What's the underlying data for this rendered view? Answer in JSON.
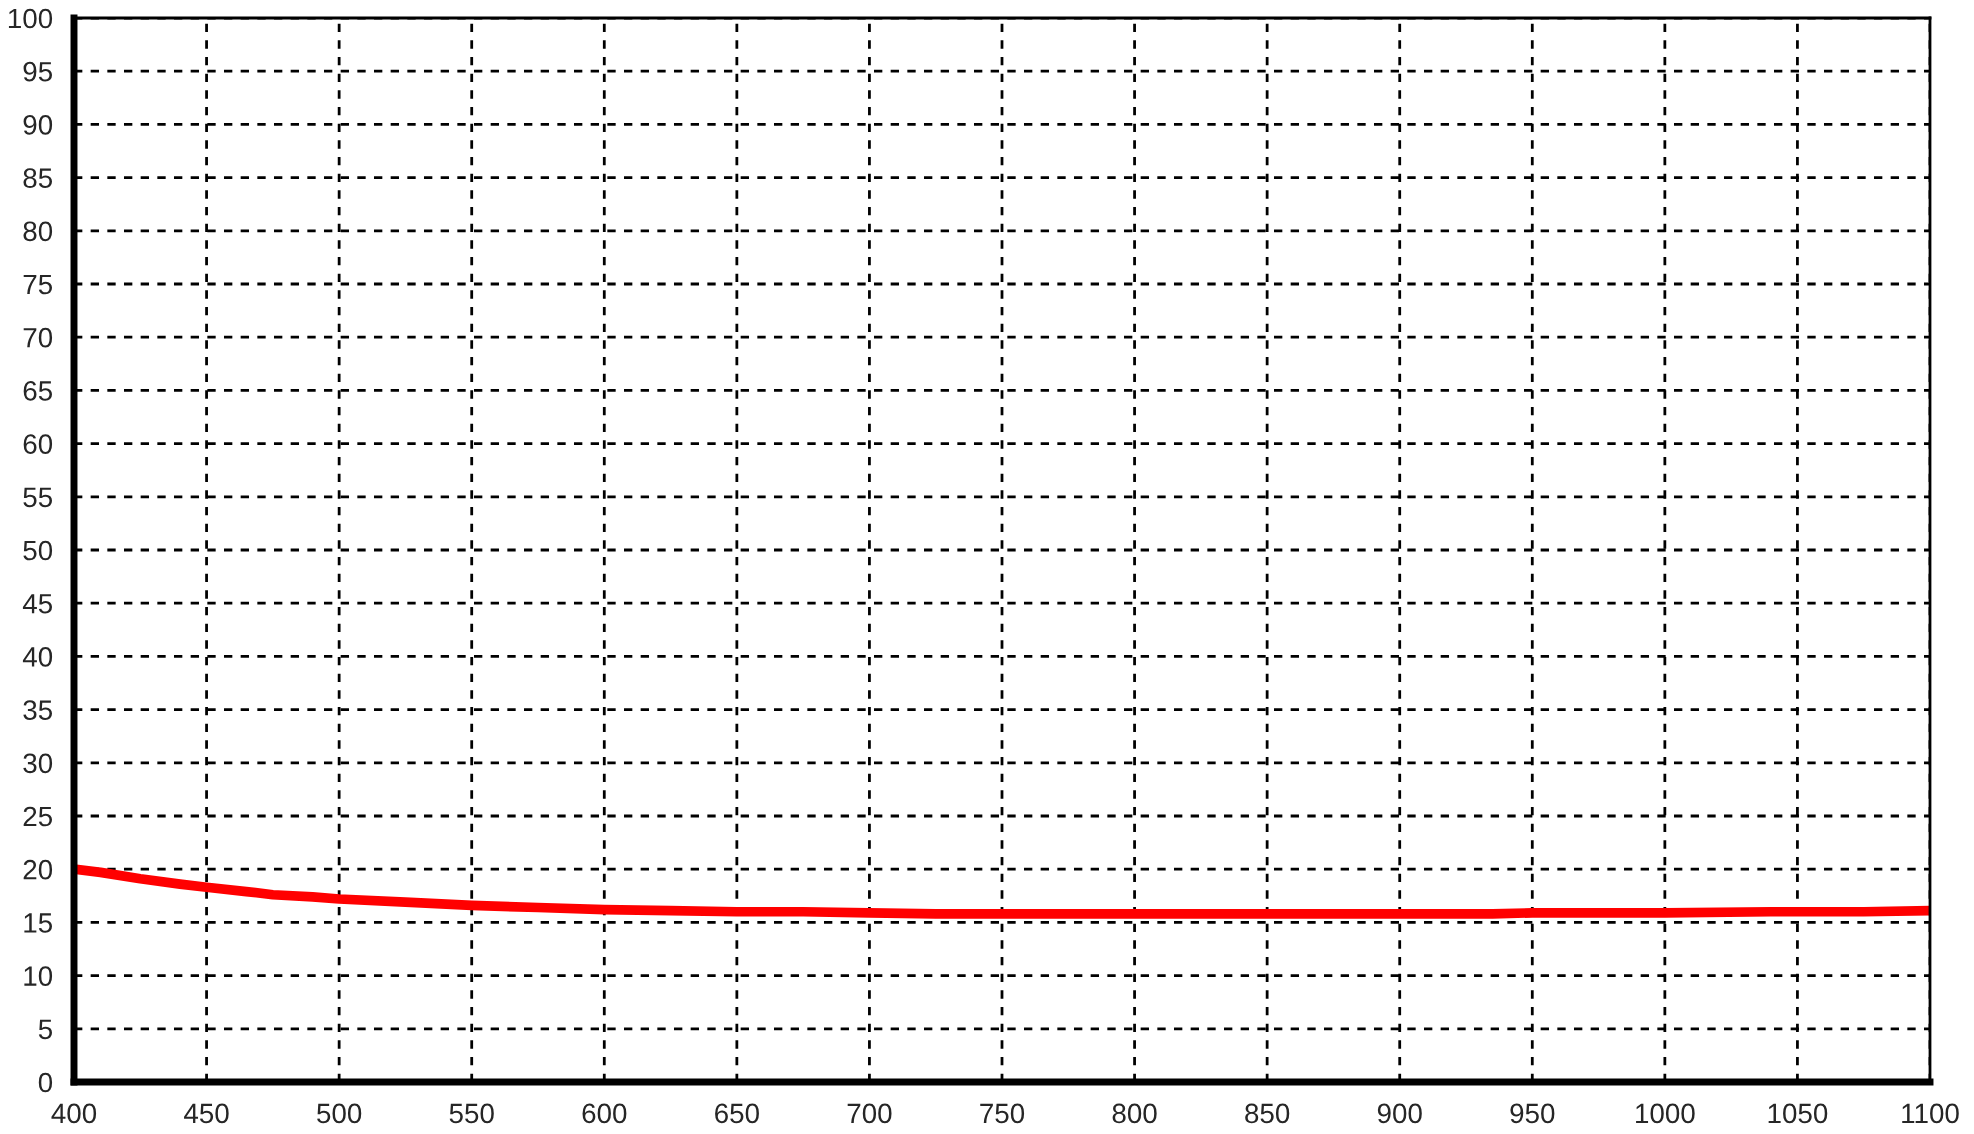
{
  "chart_data": {
    "type": "line",
    "x": [
      400,
      410,
      425,
      440,
      450,
      465,
      475,
      490,
      500,
      525,
      550,
      575,
      600,
      625,
      650,
      675,
      700,
      725,
      750,
      800,
      850,
      900,
      935,
      950,
      975,
      1000,
      1040,
      1050,
      1075,
      1100
    ],
    "series": [
      {
        "color": "#ff0000",
        "values": [
          20.0,
          19.7,
          19.1,
          18.6,
          18.3,
          17.9,
          17.6,
          17.4,
          17.2,
          16.9,
          16.6,
          16.4,
          16.2,
          16.1,
          16.0,
          16.0,
          15.9,
          15.8,
          15.8,
          15.8,
          15.8,
          15.8,
          15.8,
          15.9,
          15.9,
          15.9,
          16.0,
          16.0,
          16.0,
          16.1
        ]
      }
    ],
    "xlim": [
      400,
      1100
    ],
    "xticks": [
      400,
      450,
      500,
      550,
      600,
      650,
      700,
      750,
      800,
      850,
      900,
      950,
      1000,
      1050,
      1100
    ],
    "ylim": [
      0,
      100
    ],
    "yticks": [
      0,
      5,
      10,
      15,
      20,
      25,
      30,
      35,
      40,
      45,
      50,
      55,
      60,
      65,
      70,
      75,
      80,
      85,
      90,
      95,
      100
    ],
    "grid": true,
    "marker": "none",
    "line_style": "solid"
  }
}
